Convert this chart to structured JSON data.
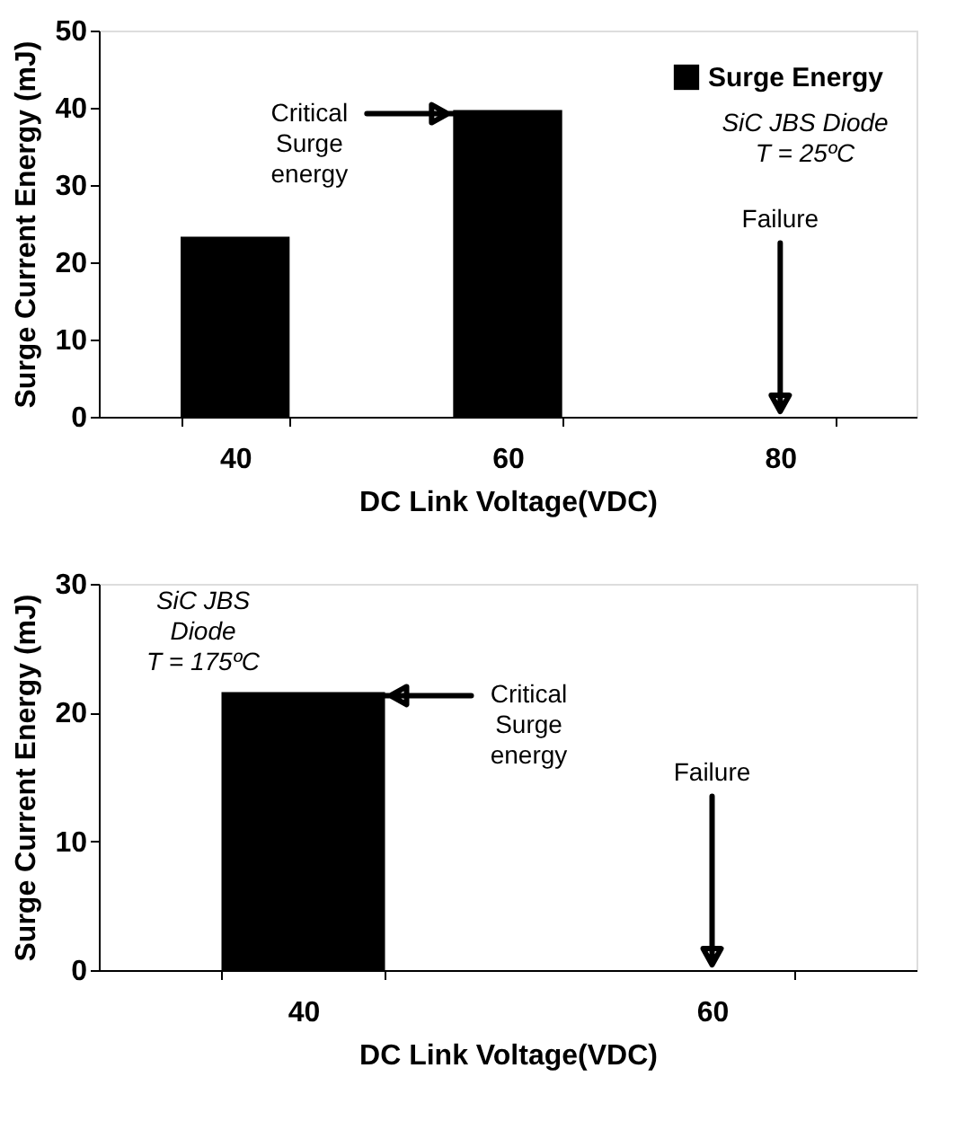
{
  "chart_data": [
    {
      "type": "bar",
      "categories": [
        "40",
        "60",
        "80"
      ],
      "xlabel": "DC Link Voltage(VDC)",
      "ylabel": "Surge Current Energy (mJ)",
      "series": [
        {
          "name": "Surge Energy",
          "color": "#000000",
          "values": [
            23.3,
            39.7,
            null
          ]
        }
      ],
      "ylim": [
        0,
        50
      ],
      "yticks": [
        0,
        10,
        20,
        30,
        40,
        50
      ],
      "grid": false,
      "legend": "top right",
      "annotations": [
        {
          "text": "Critical\nSurge\nenergy",
          "x": "60",
          "y": 39.7
        },
        "Failure",
        "SiC JBS Diode\nT = 25ºC"
      ]
    },
    {
      "type": "bar",
      "categories": [
        "40",
        "60"
      ],
      "xlabel": "DC Link Voltage(VDC)",
      "ylabel": "Surge Current Energy (mJ)",
      "series": [
        {
          "name": "Surge Energy",
          "color": "#000000",
          "values": [
            21.6,
            null
          ]
        }
      ],
      "ylim": [
        0,
        30
      ],
      "yticks": [
        0,
        10,
        20,
        30
      ],
      "grid": false,
      "legend": "top right",
      "annotations": [
        {
          "text": "Critical\nSurge\nenergy",
          "x": "40",
          "y": 21.6
        },
        "Failure",
        "SiC JBS\nDiode\nT = 175ºC"
      ]
    }
  ]
}
